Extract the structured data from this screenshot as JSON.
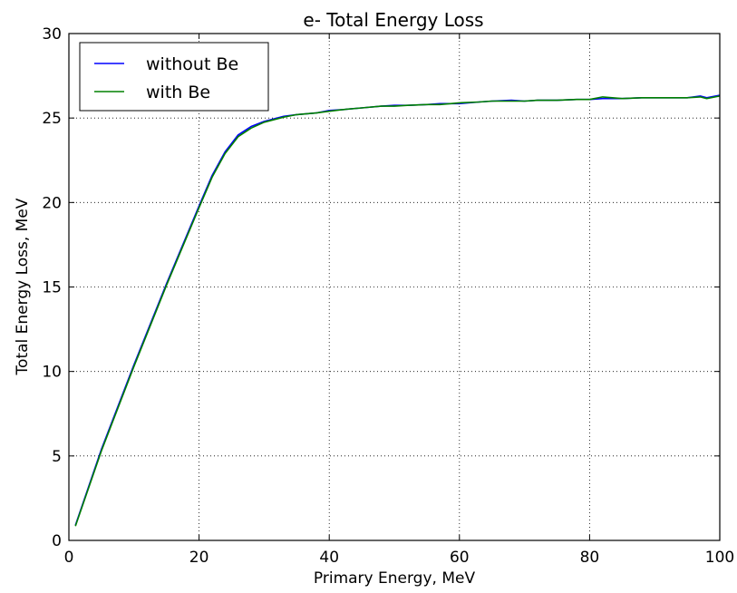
{
  "chart_data": {
    "type": "line",
    "title": "e- Total Energy Loss",
    "xlabel": "Primary Energy, MeV",
    "ylabel": "Total Energy Loss, MeV",
    "xlim": [
      0,
      100
    ],
    "ylim": [
      0,
      30
    ],
    "xticks": [
      0,
      20,
      40,
      60,
      80,
      100
    ],
    "yticks": [
      0,
      5,
      10,
      15,
      20,
      25,
      30
    ],
    "grid": true,
    "legend_position": "top-left",
    "series": [
      {
        "name": "without Be",
        "color": "#0000ff",
        "x": [
          1,
          5,
          10,
          15,
          20,
          22,
          24,
          26,
          28,
          30,
          33,
          35,
          38,
          40,
          42,
          45,
          48,
          50,
          52,
          55,
          57,
          60,
          63,
          65,
          68,
          70,
          72,
          75,
          78,
          80,
          82,
          85,
          88,
          90,
          92,
          95,
          97,
          98,
          100
        ],
        "y": [
          0.9,
          5.4,
          10.4,
          15.2,
          19.8,
          21.6,
          23.0,
          24.0,
          24.5,
          24.8,
          25.1,
          25.2,
          25.3,
          25.45,
          25.5,
          25.6,
          25.7,
          25.75,
          25.75,
          25.8,
          25.85,
          25.85,
          25.95,
          26.0,
          26.05,
          26.0,
          26.05,
          26.05,
          26.1,
          26.1,
          26.15,
          26.15,
          26.2,
          26.2,
          26.2,
          26.2,
          26.3,
          26.2,
          26.35
        ]
      },
      {
        "name": "with Be",
        "color": "#008000",
        "x": [
          1,
          5,
          10,
          15,
          20,
          22,
          24,
          26,
          28,
          30,
          33,
          35,
          38,
          40,
          42,
          45,
          48,
          50,
          52,
          55,
          57,
          60,
          63,
          65,
          68,
          70,
          72,
          75,
          78,
          80,
          82,
          85,
          88,
          90,
          92,
          95,
          97,
          98,
          100
        ],
        "y": [
          0.85,
          5.3,
          10.3,
          15.1,
          19.7,
          21.5,
          22.9,
          23.9,
          24.4,
          24.75,
          25.05,
          25.2,
          25.3,
          25.4,
          25.5,
          25.6,
          25.7,
          25.7,
          25.75,
          25.8,
          25.8,
          25.9,
          25.95,
          26.0,
          26.0,
          26.0,
          26.05,
          26.05,
          26.1,
          26.1,
          26.25,
          26.15,
          26.2,
          26.2,
          26.2,
          26.2,
          26.25,
          26.15,
          26.3
        ]
      }
    ]
  }
}
